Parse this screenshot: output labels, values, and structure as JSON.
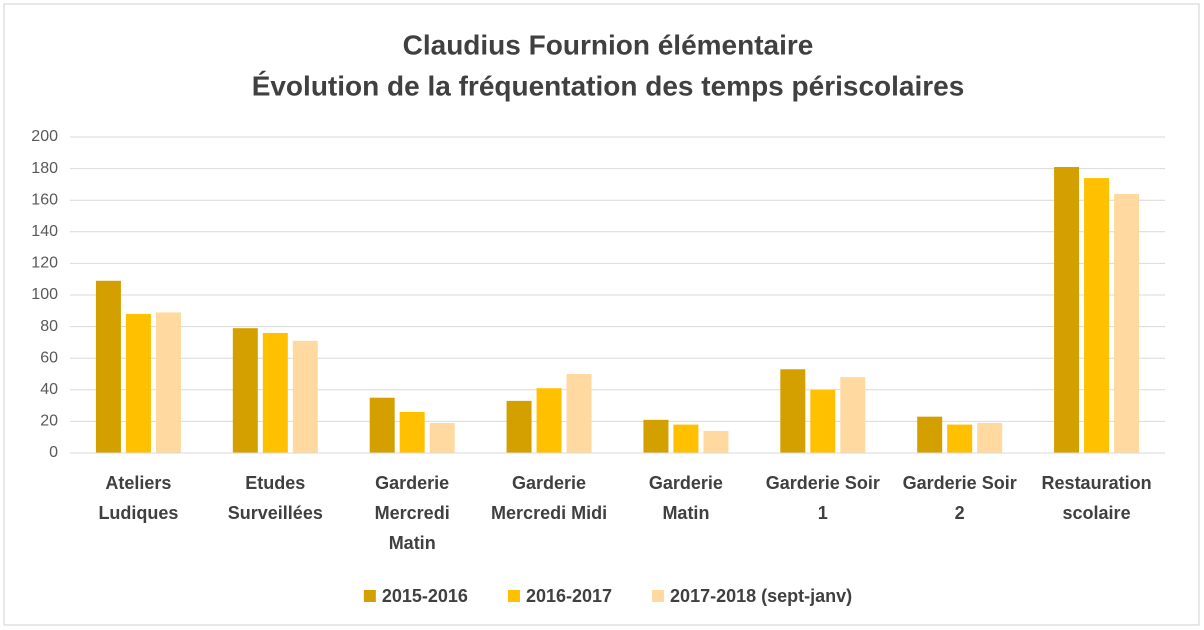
{
  "chart_data": {
    "type": "bar",
    "title": [
      "Claudius Fournion élémentaire",
      "Évolution de la fréquentation des temps périscolaires"
    ],
    "categories": [
      "Ateliers Ludiques",
      "Etudes Surveillées",
      "Garderie Mercredi Matin",
      "Garderie Mercredi Midi",
      "Garderie Matin",
      "Garderie Soir 1",
      "Garderie Soir 2",
      "Restauration scolaire"
    ],
    "series": [
      {
        "name": "2015-2016",
        "color": "#d4a000",
        "values": [
          109,
          79,
          35,
          33,
          21,
          53,
          23,
          181
        ]
      },
      {
        "name": "2016-2017",
        "color": "#ffc000",
        "values": [
          88,
          76,
          26,
          41,
          18,
          40,
          18,
          174
        ]
      },
      {
        "name": "2017-2018 (sept-janv)",
        "color": "#ffd9a0",
        "values": [
          89,
          71,
          19,
          50,
          14,
          48,
          19,
          164
        ]
      }
    ],
    "ylim": [
      0,
      200
    ],
    "yticks": [
      0,
      20,
      40,
      60,
      80,
      100,
      120,
      140,
      160,
      180,
      200
    ],
    "grid": true,
    "legend": "bottom"
  }
}
